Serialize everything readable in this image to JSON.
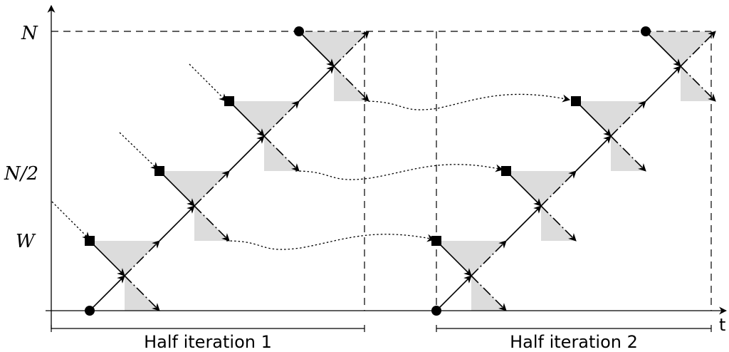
{
  "axes": {
    "y_ticks": [
      {
        "label": "N",
        "row": "top"
      },
      {
        "label": "N/2",
        "row": "middle"
      },
      {
        "label": "W",
        "row": "low"
      }
    ],
    "x_label": "t"
  },
  "captions": {
    "half1": "Half iteration 1",
    "half2": "Half iteration 2"
  },
  "colors": {
    "shade": "#dcdcdc",
    "ink": "#000000"
  },
  "markers": {
    "circle": "filled-circle-marker",
    "square": "filled-square-marker"
  }
}
